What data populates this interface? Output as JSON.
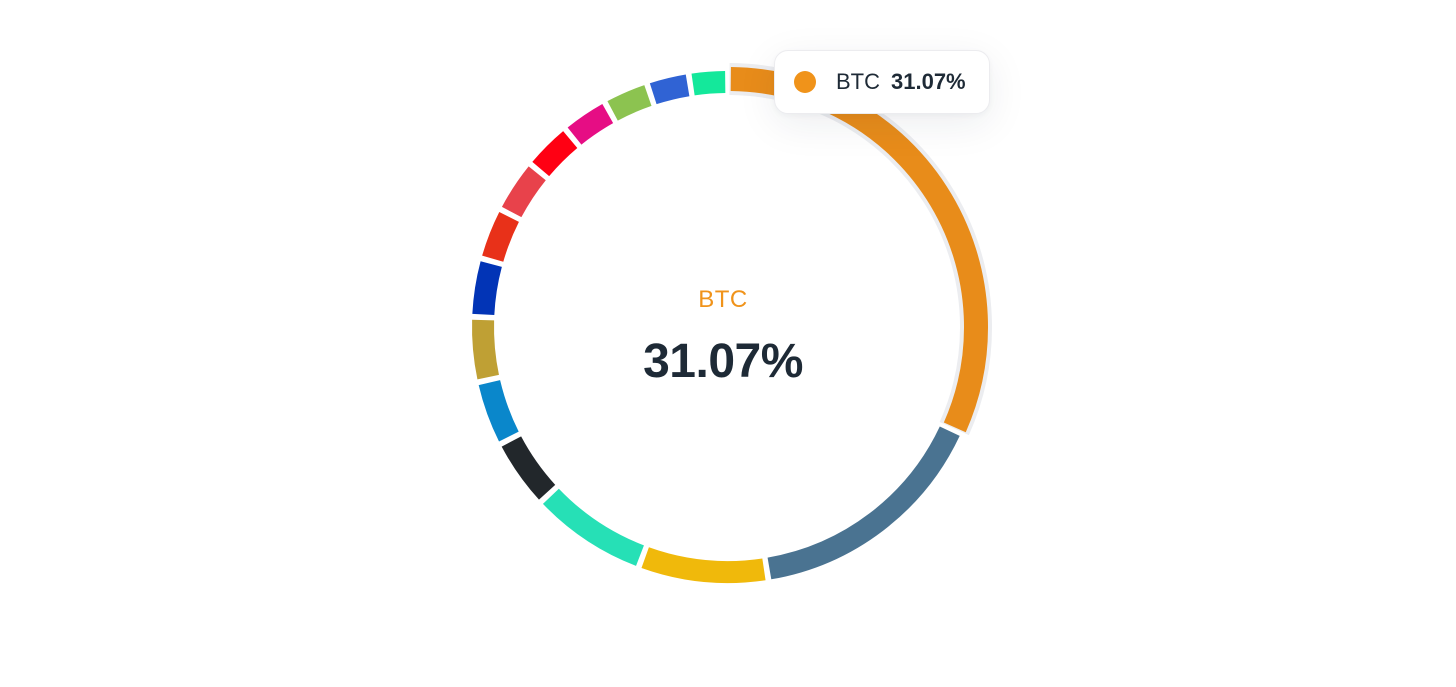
{
  "chart_data": {
    "type": "pie",
    "donut": true,
    "highlighted": {
      "label": "BTC",
      "value_text": "31.07%",
      "color": "#F0931A"
    },
    "series": [
      {
        "label": "BTC",
        "value": 31.07,
        "color": "#E88C1A",
        "highlighted": true
      },
      {
        "label": "",
        "value": 15.3,
        "color": "#4A7391"
      },
      {
        "label": "",
        "value": 8.0,
        "color": "#F0B90B"
      },
      {
        "label": "",
        "value": 7.2,
        "color": "#26E0B6"
      },
      {
        "label": "",
        "value": 4.3,
        "color": "#22272B"
      },
      {
        "label": "",
        "value": 4.0,
        "color": "#0A87CB"
      },
      {
        "label": "",
        "value": 4.0,
        "color": "#BFA034"
      },
      {
        "label": "",
        "value": 3.6,
        "color": "#0234B6"
      },
      {
        "label": "",
        "value": 3.2,
        "color": "#E83119"
      },
      {
        "label": "",
        "value": 3.3,
        "color": "#E8424B"
      },
      {
        "label": "",
        "value": 3.0,
        "color": "#FF0013"
      },
      {
        "label": "",
        "value": 2.9,
        "color": "#E60D84"
      },
      {
        "label": "",
        "value": 2.8,
        "color": "#8CC350"
      },
      {
        "label": "",
        "value": 2.6,
        "color": "#3063D4"
      },
      {
        "label": "",
        "value": 2.4,
        "color": "#14E89B"
      }
    ]
  },
  "center": {
    "label": "BTC",
    "value": "31.07%"
  },
  "tooltip": {
    "label": "BTC",
    "value": "31.07%",
    "dot_color": "#F0931A"
  }
}
